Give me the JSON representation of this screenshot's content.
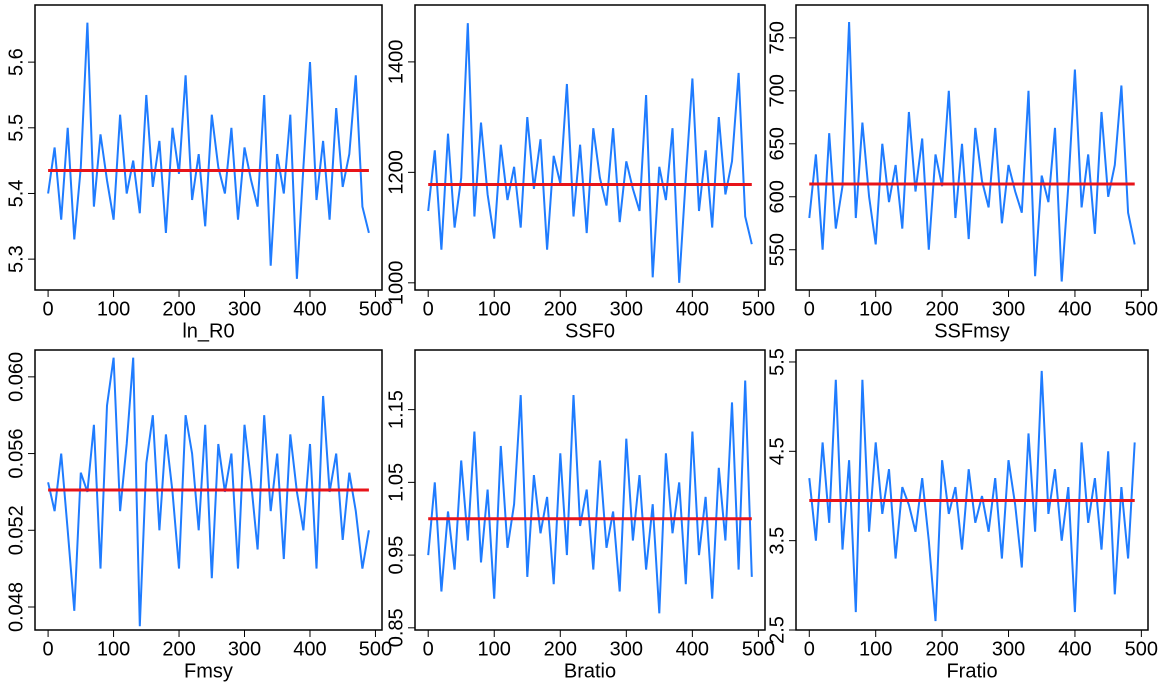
{
  "chart_data": [
    {
      "type": "line",
      "xlabel": "ln_R0",
      "color": "#1f7cff",
      "hline": {
        "value": 5.435,
        "color": "#e8141a"
      },
      "xlim": [
        -20,
        510
      ],
      "xticks": [
        0,
        100,
        200,
        300,
        400,
        500
      ],
      "ylim": [
        5.253,
        5.687
      ],
      "yticks": [
        5.3,
        5.4,
        5.5,
        5.6
      ],
      "x": [
        0,
        10,
        20,
        30,
        40,
        50,
        60,
        70,
        80,
        90,
        100,
        110,
        120,
        130,
        140,
        150,
        160,
        170,
        180,
        190,
        200,
        210,
        220,
        230,
        240,
        250,
        260,
        270,
        280,
        290,
        300,
        310,
        320,
        330,
        340,
        350,
        360,
        370,
        380,
        390,
        400,
        410,
        420,
        430,
        440,
        450,
        460,
        470,
        480,
        490
      ],
      "values": [
        5.4,
        5.47,
        5.36,
        5.5,
        5.33,
        5.44,
        5.66,
        5.38,
        5.49,
        5.42,
        5.36,
        5.52,
        5.4,
        5.45,
        5.37,
        5.55,
        5.41,
        5.48,
        5.34,
        5.5,
        5.43,
        5.58,
        5.39,
        5.46,
        5.35,
        5.52,
        5.44,
        5.4,
        5.5,
        5.36,
        5.47,
        5.42,
        5.38,
        5.55,
        5.29,
        5.46,
        5.4,
        5.52,
        5.27,
        5.44,
        5.6,
        5.39,
        5.48,
        5.36,
        5.53,
        5.41,
        5.46,
        5.58,
        5.38,
        5.34
      ]
    },
    {
      "type": "line",
      "xlabel": "SSF0",
      "color": "#1f7cff",
      "hline": {
        "value": 1178,
        "color": "#e8141a"
      },
      "xlim": [
        -20,
        510
      ],
      "xticks": [
        0,
        100,
        200,
        300,
        400,
        500
      ],
      "ylim": [
        987,
        1503
      ],
      "yticks": [
        1000,
        1200,
        1400
      ],
      "x": [
        0,
        10,
        20,
        30,
        40,
        50,
        60,
        70,
        80,
        90,
        100,
        110,
        120,
        130,
        140,
        150,
        160,
        170,
        180,
        190,
        200,
        210,
        220,
        230,
        240,
        250,
        260,
        270,
        280,
        290,
        300,
        310,
        320,
        330,
        340,
        350,
        360,
        370,
        380,
        390,
        400,
        410,
        420,
        430,
        440,
        450,
        460,
        470,
        480,
        490
      ],
      "values": [
        1130,
        1240,
        1060,
        1270,
        1100,
        1190,
        1470,
        1120,
        1290,
        1160,
        1080,
        1250,
        1150,
        1210,
        1100,
        1300,
        1170,
        1260,
        1060,
        1230,
        1180,
        1360,
        1120,
        1250,
        1090,
        1280,
        1190,
        1140,
        1280,
        1110,
        1220,
        1170,
        1130,
        1340,
        1010,
        1210,
        1150,
        1280,
        1000,
        1190,
        1370,
        1130,
        1240,
        1100,
        1300,
        1160,
        1220,
        1380,
        1120,
        1070
      ]
    },
    {
      "type": "line",
      "xlabel": "SSFmsy",
      "color": "#1f7cff",
      "hline": {
        "value": 612,
        "color": "#e8141a"
      },
      "xlim": [
        -20,
        510
      ],
      "xticks": [
        0,
        100,
        200,
        300,
        400,
        500
      ],
      "ylim": [
        512,
        781
      ],
      "yticks": [
        550,
        600,
        650,
        700,
        750
      ],
      "x": [
        0,
        10,
        20,
        30,
        40,
        50,
        60,
        70,
        80,
        90,
        100,
        110,
        120,
        130,
        140,
        150,
        160,
        170,
        180,
        190,
        200,
        210,
        220,
        230,
        240,
        250,
        260,
        270,
        280,
        290,
        300,
        310,
        320,
        330,
        340,
        350,
        360,
        370,
        380,
        390,
        400,
        410,
        420,
        430,
        440,
        450,
        460,
        470,
        480,
        490
      ],
      "values": [
        580,
        640,
        550,
        660,
        570,
        610,
        765,
        580,
        670,
        600,
        555,
        650,
        595,
        630,
        570,
        680,
        605,
        655,
        550,
        640,
        610,
        700,
        580,
        650,
        560,
        665,
        615,
        590,
        665,
        575,
        630,
        605,
        585,
        700,
        525,
        620,
        595,
        665,
        520,
        610,
        720,
        590,
        640,
        565,
        680,
        600,
        630,
        705,
        585,
        555
      ]
    },
    {
      "type": "line",
      "xlabel": "Fmsy",
      "color": "#1f7cff",
      "hline": {
        "value": 0.0541,
        "color": "#e8141a"
      },
      "xlim": [
        -20,
        510
      ],
      "xticks": [
        0,
        100,
        200,
        300,
        400,
        500
      ],
      "ylim": [
        0.0468,
        0.0614
      ],
      "yticks": [
        0.048,
        0.052,
        0.056,
        {
          "value": 0.06,
          "label": "0.060"
        }
      ],
      "x": [
        0,
        10,
        20,
        30,
        40,
        50,
        60,
        70,
        80,
        90,
        100,
        110,
        120,
        130,
        140,
        150,
        160,
        170,
        180,
        190,
        200,
        210,
        220,
        230,
        240,
        250,
        260,
        270,
        280,
        290,
        300,
        310,
        320,
        330,
        340,
        350,
        360,
        370,
        380,
        390,
        400,
        410,
        420,
        430,
        440,
        450,
        460,
        470,
        480,
        490
      ],
      "values": [
        0.0545,
        0.053,
        0.056,
        0.052,
        0.0478,
        0.055,
        0.054,
        0.0575,
        0.05,
        0.0585,
        0.061,
        0.053,
        0.0565,
        0.061,
        0.047,
        0.0555,
        0.058,
        0.052,
        0.057,
        0.054,
        0.05,
        0.058,
        0.056,
        0.052,
        0.0575,
        0.0495,
        0.0565,
        0.054,
        0.056,
        0.05,
        0.0575,
        0.0545,
        0.051,
        0.058,
        0.053,
        0.056,
        0.0505,
        0.057,
        0.054,
        0.052,
        0.0565,
        0.05,
        0.059,
        0.054,
        0.056,
        0.0515,
        0.055,
        0.053,
        0.05,
        0.052
      ]
    },
    {
      "type": "line",
      "xlabel": "Bratio",
      "color": "#1f7cff",
      "hline": {
        "value": 1.0,
        "color": "#e8141a"
      },
      "xlim": [
        -20,
        510
      ],
      "xticks": [
        0,
        100,
        200,
        300,
        400,
        500
      ],
      "ylim": [
        0.847,
        1.232
      ],
      "yticks": [
        0.85,
        0.95,
        1.05,
        1.15
      ],
      "x": [
        0,
        10,
        20,
        30,
        40,
        50,
        60,
        70,
        80,
        90,
        100,
        110,
        120,
        130,
        140,
        150,
        160,
        170,
        180,
        190,
        200,
        210,
        220,
        230,
        240,
        250,
        260,
        270,
        280,
        290,
        300,
        310,
        320,
        330,
        340,
        350,
        360,
        370,
        380,
        390,
        400,
        410,
        420,
        430,
        440,
        450,
        460,
        470,
        480,
        490
      ],
      "values": [
        0.95,
        1.05,
        0.9,
        1.01,
        0.93,
        1.08,
        0.97,
        1.12,
        0.94,
        1.04,
        0.89,
        1.1,
        0.96,
        1.02,
        1.17,
        0.92,
        1.06,
        0.98,
        1.03,
        0.91,
        1.09,
        0.95,
        1.17,
        0.99,
        1.04,
        0.93,
        1.08,
        0.96,
        1.01,
        0.9,
        1.11,
        0.97,
        1.06,
        0.93,
        1.02,
        0.87,
        1.09,
        0.98,
        1.05,
        0.91,
        1.12,
        0.95,
        1.03,
        0.89,
        1.07,
        0.97,
        1.16,
        0.93,
        1.19,
        0.92
      ]
    },
    {
      "type": "line",
      "xlabel": "Fratio",
      "color": "#1f7cff",
      "hline": {
        "value": 3.95,
        "color": "#e8141a"
      },
      "xlim": [
        -20,
        510
      ],
      "xticks": [
        0,
        100,
        200,
        300,
        400,
        500
      ],
      "ylim": [
        2.5,
        5.634
      ],
      "yticks": [
        2.5,
        3.5,
        4.5,
        5.5
      ],
      "x": [
        0,
        10,
        20,
        30,
        40,
        50,
        60,
        70,
        80,
        90,
        100,
        110,
        120,
        130,
        140,
        150,
        160,
        170,
        180,
        190,
        200,
        210,
        220,
        230,
        240,
        250,
        260,
        270,
        280,
        290,
        300,
        310,
        320,
        330,
        340,
        350,
        360,
        370,
        380,
        390,
        400,
        410,
        420,
        430,
        440,
        450,
        460,
        470,
        480,
        490
      ],
      "values": [
        4.2,
        3.5,
        4.6,
        3.7,
        5.3,
        3.4,
        4.4,
        2.7,
        5.3,
        3.6,
        4.6,
        3.8,
        4.3,
        3.3,
        4.1,
        3.9,
        3.6,
        4.2,
        3.5,
        2.6,
        4.4,
        3.8,
        4.1,
        3.4,
        4.3,
        3.7,
        4.0,
        3.6,
        4.2,
        3.3,
        4.4,
        3.9,
        3.2,
        4.7,
        3.6,
        5.4,
        3.8,
        4.3,
        3.5,
        4.1,
        2.7,
        4.6,
        3.7,
        4.2,
        3.4,
        4.5,
        2.9,
        4.1,
        3.3,
        4.6
      ]
    }
  ]
}
